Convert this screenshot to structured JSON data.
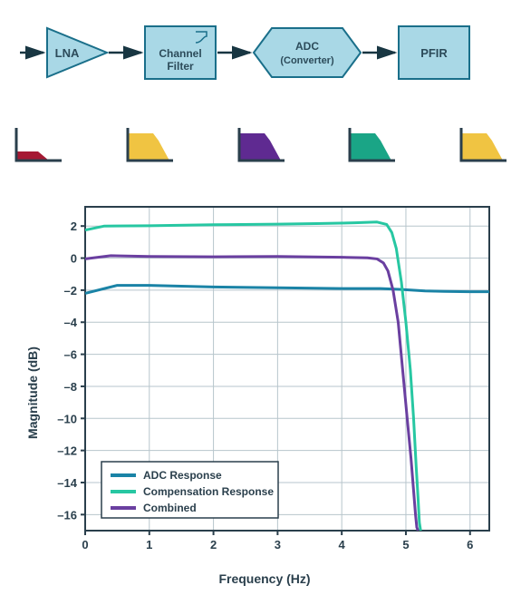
{
  "blocks": {
    "lna": "LNA",
    "filter_l1": "Channel",
    "filter_l2": "Filter",
    "adc_l1": "ADC",
    "adc_l2": "(Converter)",
    "pfir": "PFIR"
  },
  "block_style": {
    "fill": "#a9d8e6",
    "stroke": "#1a6f8a",
    "stroke_width": 2,
    "arrow_stroke": "#183642",
    "text_color": "#2c4b5a"
  },
  "mini_icons": [
    {
      "color": "#a51933",
      "shape": "low-flat"
    },
    {
      "color": "#f0c442",
      "shape": "lowpass"
    },
    {
      "color": "#5f2a91",
      "shape": "lowpass"
    },
    {
      "color": "#1aa586",
      "shape": "lowpass"
    },
    {
      "color": "#f0c442",
      "shape": "lowpass"
    }
  ],
  "mini_style": {
    "axis": "#2a3f4c"
  },
  "chart": {
    "type": "line",
    "xlabel": "Frequency (Hz)",
    "ylabel": "Magnitude (dB)",
    "xlim": [
      0,
      6.3
    ],
    "ylim": [
      -17,
      3.2
    ],
    "xticks": [
      0,
      1,
      2,
      3,
      4,
      5,
      6
    ],
    "yticks": [
      -16,
      -14,
      -12,
      -10,
      -8,
      -6,
      -4,
      -2,
      0,
      2
    ],
    "border_color": "#2a3f4c",
    "grid_color": "#b7c5cc",
    "bg": "#ffffff",
    "line_width": 3,
    "series": [
      {
        "name": "ADC Response",
        "color": "#1a83a6",
        "xs": [
          0,
          0.5,
          1,
          2,
          3,
          4,
          4.6,
          4.9,
          5.1,
          5.3,
          5.6,
          6,
          6.3
        ],
        "ys": [
          -2.2,
          -1.7,
          -1.7,
          -1.8,
          -1.85,
          -1.9,
          -1.9,
          -1.95,
          -2.0,
          -2.05,
          -2.08,
          -2.1,
          -2.1
        ]
      },
      {
        "name": "Compensation Response",
        "color": "#27c7a2",
        "xs": [
          0,
          0.3,
          1,
          2,
          3,
          3.6,
          4.2,
          4.55,
          4.7,
          4.78,
          4.85,
          4.93,
          5.0,
          5.07,
          5.12,
          5.16,
          5.19,
          5.21,
          5.23
        ],
        "ys": [
          1.75,
          2.0,
          2.02,
          2.08,
          2.12,
          2.15,
          2.2,
          2.25,
          2.1,
          1.6,
          0.6,
          -1.5,
          -4,
          -7,
          -10,
          -13,
          -15,
          -16.5,
          -17
        ]
      },
      {
        "name": "Combined",
        "color": "#6a3fa0",
        "xs": [
          0,
          0.4,
          1,
          2,
          3,
          4,
          4.4,
          4.55,
          4.65,
          4.72,
          4.8,
          4.88,
          4.95,
          5.02,
          5.08,
          5.12,
          5.15,
          5.17,
          5.19
        ],
        "ys": [
          -0.05,
          0.15,
          0.1,
          0.08,
          0.1,
          0.05,
          0.02,
          -0.05,
          -0.3,
          -0.8,
          -2,
          -4,
          -7,
          -10,
          -12.5,
          -14.5,
          -16,
          -16.8,
          -17
        ]
      }
    ],
    "legend": {
      "items": [
        {
          "label": "ADC Response",
          "color": "#1a83a6"
        },
        {
          "label": "Compensation Response",
          "color": "#27c7a2"
        },
        {
          "label": "Combined",
          "color": "#6a3fa0"
        }
      ]
    }
  }
}
